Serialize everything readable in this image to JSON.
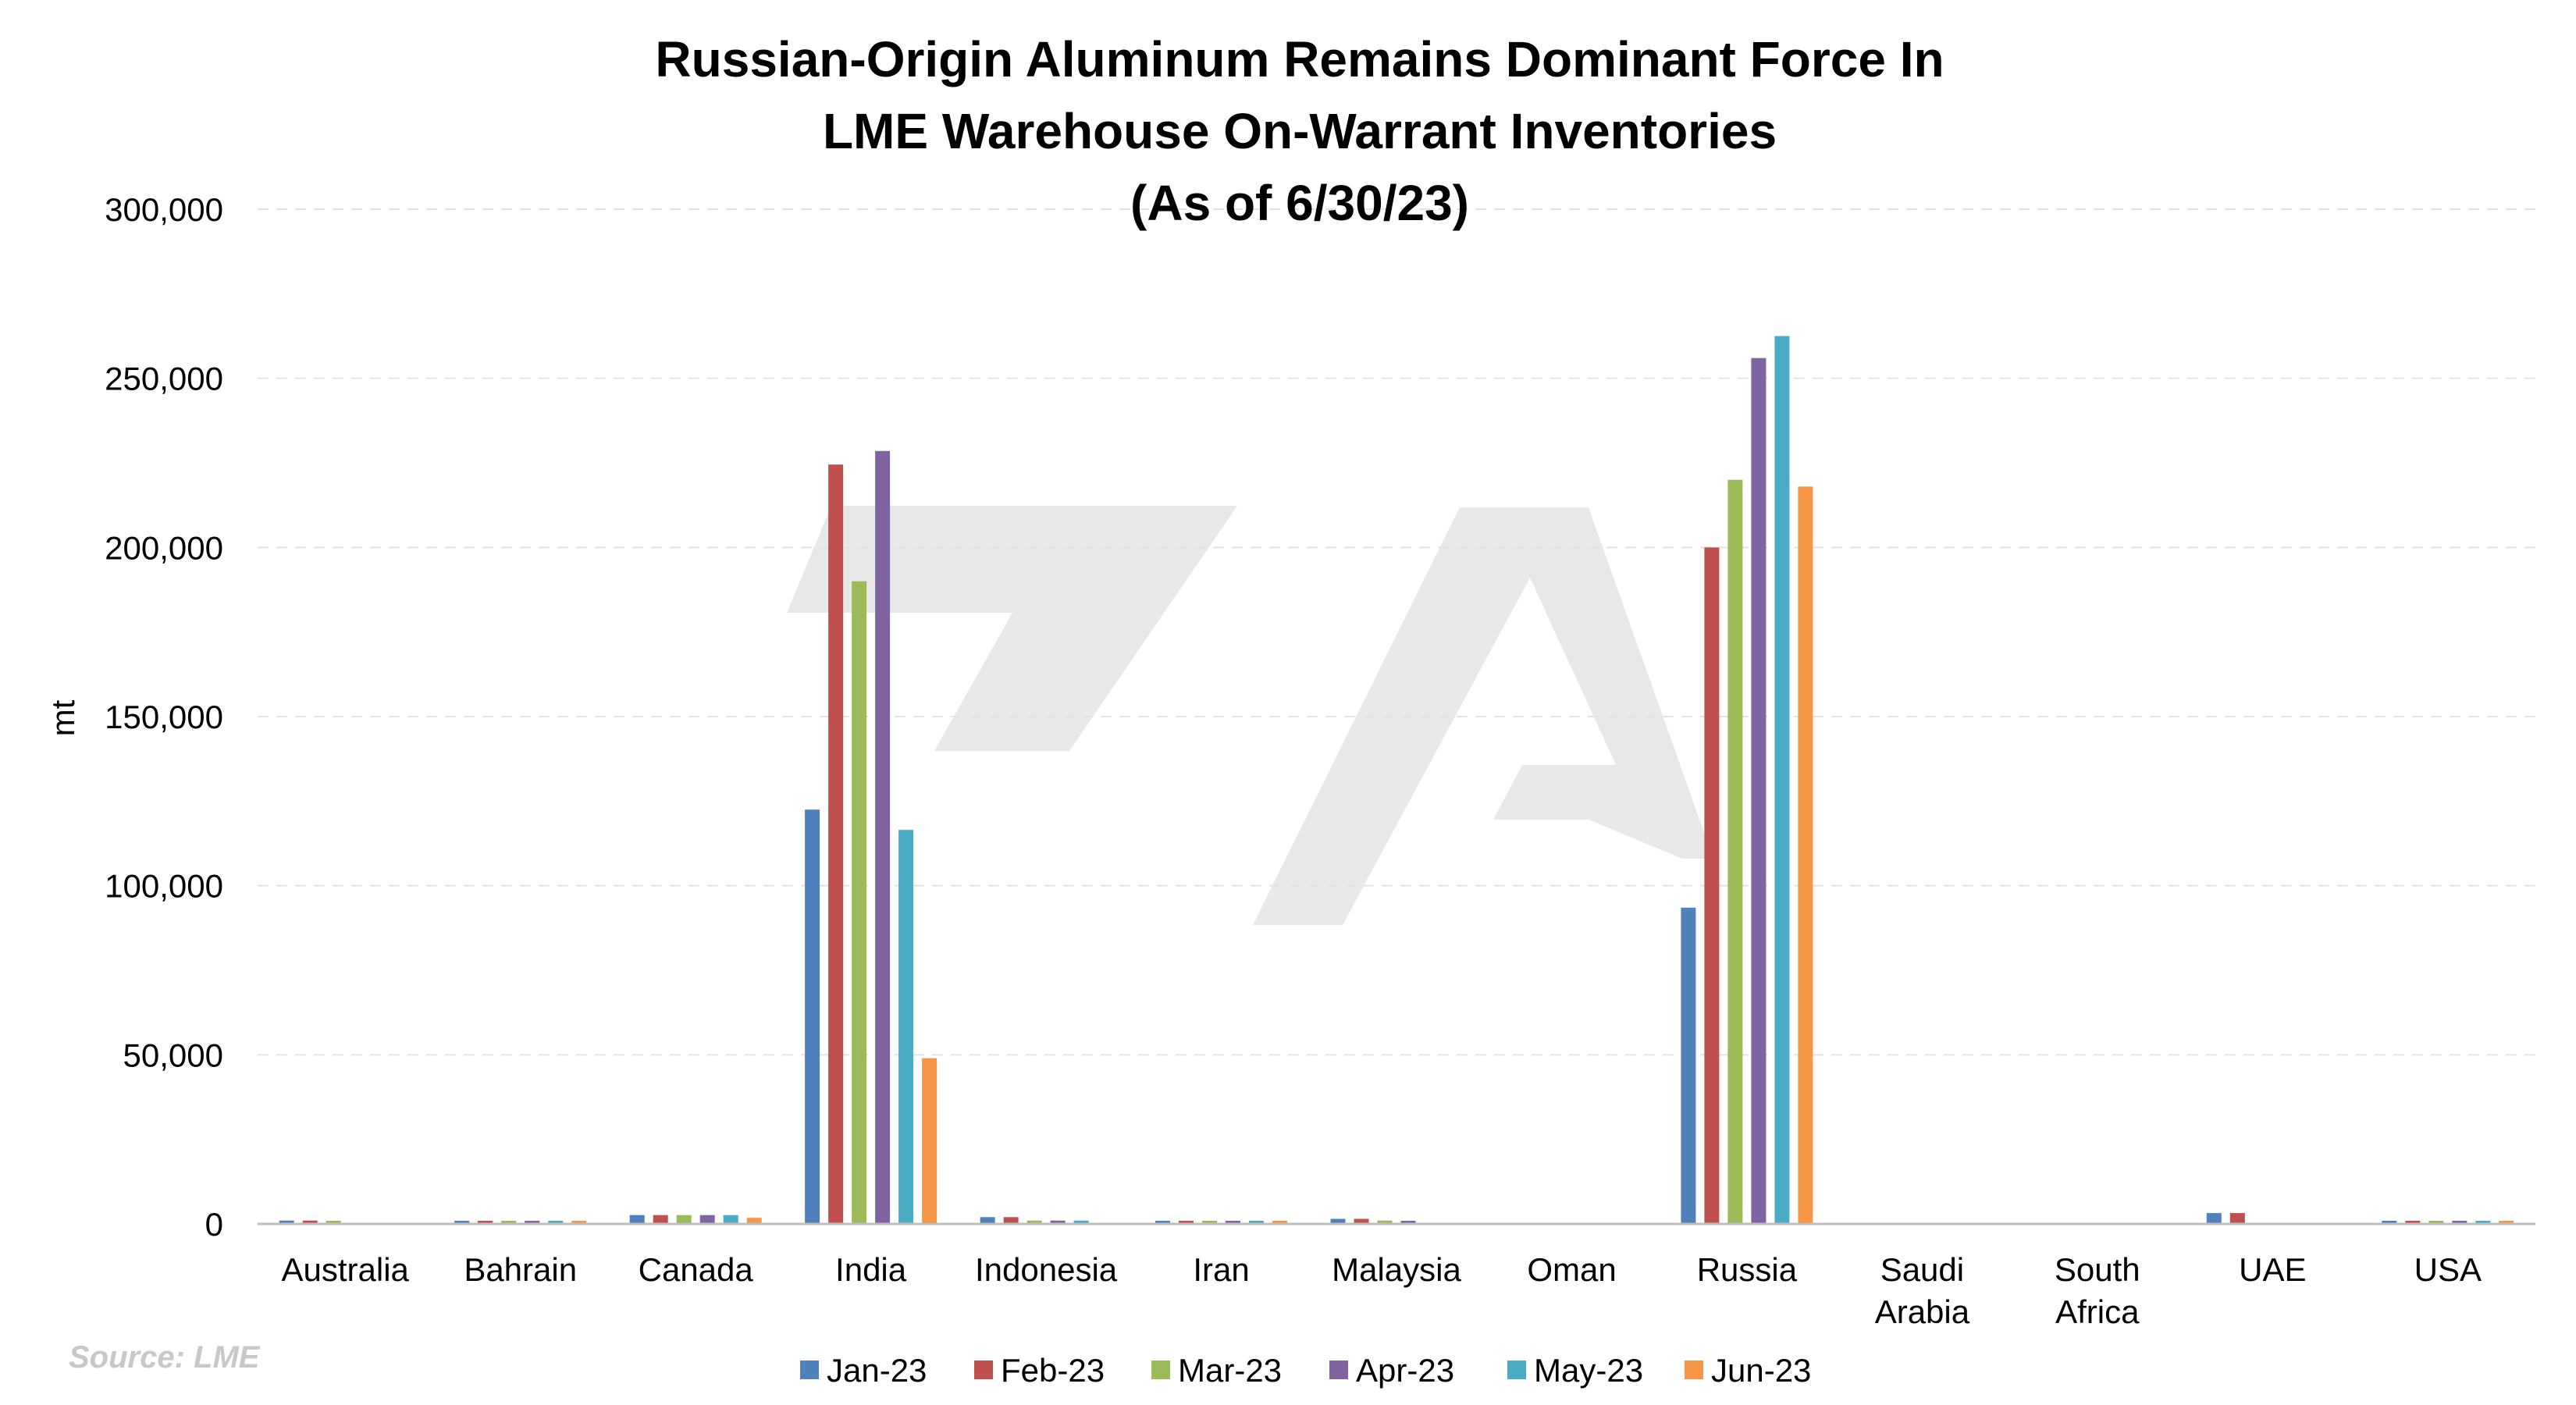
{
  "chart_data": {
    "type": "bar",
    "title_lines": [
      "Russian-Origin Aluminum Remains Dominant Force In",
      "LME Warehouse On-Warrant Inventories",
      "(As of 6/30/23)"
    ],
    "ylabel": "mt",
    "xlabel": "",
    "ylim": [
      0,
      300000
    ],
    "yticks": [
      {
        "value": 0,
        "label": "0"
      },
      {
        "value": 50000,
        "label": "50,000"
      },
      {
        "value": 100000,
        "label": "100,000"
      },
      {
        "value": 150000,
        "label": "150,000"
      },
      {
        "value": 200000,
        "label": "200,000"
      },
      {
        "value": 250000,
        "label": "250,000"
      },
      {
        "value": 300000,
        "label": "300,000"
      }
    ],
    "grid": true,
    "legend_position": "bottom",
    "categories": [
      [
        "Australia"
      ],
      [
        "Bahrain"
      ],
      [
        "Canada"
      ],
      [
        "India"
      ],
      [
        "Indonesia"
      ],
      [
        "Iran"
      ],
      [
        "Malaysia"
      ],
      [
        "Oman"
      ],
      [
        "Russia"
      ],
      [
        "Saudi",
        "Arabia"
      ],
      [
        "South",
        "Africa"
      ],
      [
        "UAE"
      ],
      [
        "USA"
      ]
    ],
    "series": [
      {
        "name": "Jan-23",
        "color": "#4f81bd",
        "values": [
          1000,
          800,
          2600,
          122500,
          2000,
          300,
          1500,
          0,
          93500,
          0,
          0,
          3200,
          500
        ]
      },
      {
        "name": "Feb-23",
        "color": "#c0504d",
        "values": [
          1000,
          800,
          2600,
          224500,
          2000,
          300,
          1500,
          0,
          200000,
          0,
          0,
          3200,
          500
        ]
      },
      {
        "name": "Mar-23",
        "color": "#9bbb59",
        "values": [
          900,
          700,
          2600,
          190000,
          1000,
          300,
          1000,
          0,
          220000,
          0,
          0,
          0,
          500
        ]
      },
      {
        "name": "Apr-23",
        "color": "#8064a2",
        "values": [
          0,
          700,
          2600,
          228500,
          1000,
          300,
          500,
          0,
          256000,
          0,
          0,
          0,
          500
        ]
      },
      {
        "name": "May-23",
        "color": "#4bacc6",
        "values": [
          0,
          700,
          2600,
          116500,
          1000,
          300,
          0,
          0,
          262500,
          0,
          0,
          0,
          500
        ]
      },
      {
        "name": "Jun-23",
        "color": "#f79646",
        "values": [
          0,
          700,
          1800,
          49000,
          0,
          300,
          0,
          0,
          218000,
          0,
          0,
          0,
          500
        ]
      }
    ],
    "source": "Source: LME"
  },
  "colors": {
    "gridline": "#e3e3e3",
    "axis_line": "#bfbfbf",
    "watermark": "#e6e6e6"
  }
}
